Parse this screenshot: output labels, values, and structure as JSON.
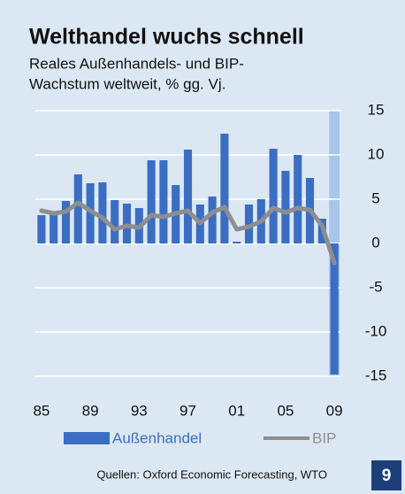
{
  "chart_data": {
    "type": "bar",
    "title": "Welthandel wuchs schnell",
    "subtitle": [
      "Reales Außenhandels- und BIP-",
      "Wachstum weltweit, % gg. Vj."
    ],
    "categories": [
      "85",
      null,
      null,
      null,
      "89",
      null,
      null,
      null,
      "93",
      null,
      null,
      null,
      "97",
      null,
      null,
      null,
      "01",
      null,
      null,
      null,
      "05",
      null,
      null,
      null,
      "09"
    ],
    "series": [
      {
        "name": "Außenhandel",
        "type": "bar",
        "color": "#3b6ec3",
        "values": [
          3.2,
          3.3,
          4.8,
          7.8,
          6.8,
          6.9,
          4.9,
          4.5,
          4.0,
          9.4,
          9.4,
          6.6,
          10.6,
          4.4,
          5.3,
          12.4,
          0.2,
          4.4,
          5.0,
          10.7,
          8.2,
          10.0,
          7.4,
          2.8,
          -14.8
        ]
      },
      {
        "name": "BIP",
        "type": "line",
        "color": "#8e8e8e",
        "values": [
          3.7,
          3.4,
          3.6,
          4.6,
          3.7,
          2.9,
          1.6,
          2.0,
          1.8,
          3.2,
          3.0,
          3.4,
          3.7,
          2.3,
          3.5,
          4.1,
          1.6,
          1.9,
          2.5,
          4.0,
          3.5,
          4.0,
          3.8,
          2.0,
          -2.2
        ]
      }
    ],
    "ylim": [
      -15,
      15
    ],
    "yticks": [
      15,
      10,
      5,
      0,
      -5,
      -10,
      -15
    ],
    "grid": true,
    "source": "Quellen: Oxford Economic Forecasting, WTO",
    "badge": "9"
  }
}
